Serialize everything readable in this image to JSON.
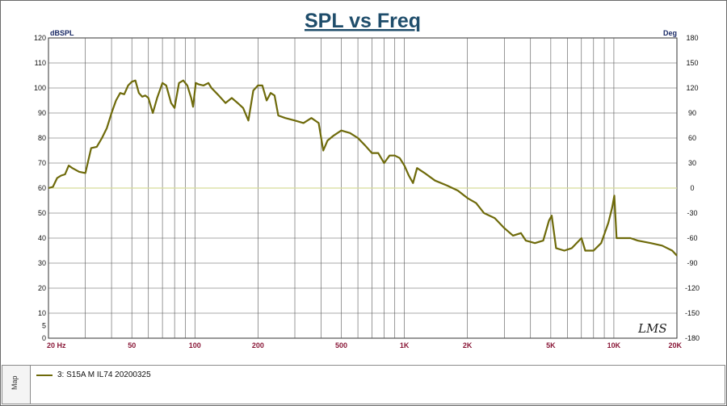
{
  "chart_data": {
    "type": "line",
    "title": "SPL vs Freq",
    "ylabel": "dBSPL",
    "y2label": "Deg",
    "xscale": "log",
    "xlim": [
      20,
      20000
    ],
    "ylim": [
      0,
      120
    ],
    "y2lim": [
      -180,
      180
    ],
    "grid": true,
    "x_ticks": [
      {
        "value": 20,
        "label": "20  Hz"
      },
      {
        "value": 50,
        "label": "50"
      },
      {
        "value": 100,
        "label": "100"
      },
      {
        "value": 200,
        "label": "200"
      },
      {
        "value": 500,
        "label": "500"
      },
      {
        "value": 1000,
        "label": "1K"
      },
      {
        "value": 2000,
        "label": "2K"
      },
      {
        "value": 5000,
        "label": "5K"
      },
      {
        "value": 10000,
        "label": "10K"
      },
      {
        "value": 20000,
        "label": "20K"
      }
    ],
    "y_ticks": [
      "0",
      "5",
      "10",
      "20",
      "30",
      "40",
      "50",
      "60",
      "70",
      "80",
      "90",
      "100",
      "110",
      "120"
    ],
    "y2_ticks": [
      "-180",
      "-150",
      "-120",
      "-90",
      "-60",
      "-30",
      "0",
      "30",
      "60",
      "90",
      "120",
      "150",
      "180"
    ],
    "phase_zero_line_color": "#d8dc9a",
    "series": [
      {
        "name": "3: S15A  M   IL74   20200325",
        "color": "#6e6a0a",
        "points": [
          [
            20,
            60
          ],
          [
            21,
            60.5
          ],
          [
            22,
            64
          ],
          [
            23,
            65
          ],
          [
            24,
            65.5
          ],
          [
            25,
            69
          ],
          [
            26,
            68
          ],
          [
            28,
            66.5
          ],
          [
            30,
            66
          ],
          [
            32,
            76
          ],
          [
            34,
            76.5
          ],
          [
            36,
            80
          ],
          [
            38,
            84
          ],
          [
            40,
            90
          ],
          [
            42,
            95
          ],
          [
            44,
            98
          ],
          [
            46,
            97.5
          ],
          [
            48,
            101
          ],
          [
            50,
            102.5
          ],
          [
            52,
            103
          ],
          [
            54,
            98
          ],
          [
            56,
            96.5
          ],
          [
            58,
            97
          ],
          [
            60,
            96
          ],
          [
            63,
            90
          ],
          [
            66,
            96
          ],
          [
            70,
            102
          ],
          [
            73,
            101
          ],
          [
            77,
            94
          ],
          [
            80,
            92
          ],
          [
            84,
            102
          ],
          [
            88,
            103
          ],
          [
            92,
            101
          ],
          [
            96,
            96
          ],
          [
            98,
            92.5
          ],
          [
            101,
            102
          ],
          [
            104,
            101.5
          ],
          [
            110,
            101
          ],
          [
            116,
            102
          ],
          [
            120,
            100
          ],
          [
            130,
            97
          ],
          [
            140,
            94
          ],
          [
            150,
            96
          ],
          [
            160,
            94
          ],
          [
            170,
            92
          ],
          [
            180,
            87
          ],
          [
            190,
            99
          ],
          [
            200,
            101
          ],
          [
            210,
            101
          ],
          [
            220,
            95
          ],
          [
            230,
            98
          ],
          [
            240,
            97
          ],
          [
            250,
            89
          ],
          [
            270,
            88
          ],
          [
            300,
            87
          ],
          [
            330,
            86
          ],
          [
            360,
            88
          ],
          [
            390,
            86
          ],
          [
            410,
            75
          ],
          [
            430,
            79
          ],
          [
            460,
            81
          ],
          [
            500,
            83
          ],
          [
            550,
            82
          ],
          [
            600,
            80
          ],
          [
            650,
            77
          ],
          [
            700,
            74
          ],
          [
            750,
            74
          ],
          [
            800,
            70
          ],
          [
            850,
            73
          ],
          [
            900,
            73
          ],
          [
            950,
            72
          ],
          [
            1000,
            69
          ],
          [
            1050,
            65
          ],
          [
            1100,
            62
          ],
          [
            1150,
            68
          ],
          [
            1250,
            66
          ],
          [
            1400,
            63
          ],
          [
            1600,
            61
          ],
          [
            1800,
            59
          ],
          [
            2000,
            56
          ],
          [
            2200,
            54
          ],
          [
            2400,
            50
          ],
          [
            2700,
            48
          ],
          [
            3000,
            44
          ],
          [
            3300,
            41
          ],
          [
            3600,
            42
          ],
          [
            3800,
            39
          ],
          [
            4200,
            38
          ],
          [
            4600,
            39
          ],
          [
            4900,
            47
          ],
          [
            5050,
            49
          ],
          [
            5300,
            36
          ],
          [
            5800,
            35
          ],
          [
            6300,
            36
          ],
          [
            7000,
            40
          ],
          [
            7300,
            35
          ],
          [
            8000,
            35
          ],
          [
            8700,
            38
          ],
          [
            9400,
            46
          ],
          [
            9800,
            52
          ],
          [
            10050,
            57
          ],
          [
            10300,
            40
          ],
          [
            12000,
            40
          ],
          [
            13000,
            39
          ],
          [
            15000,
            38
          ],
          [
            17000,
            37
          ],
          [
            19000,
            35
          ],
          [
            20000,
            33
          ]
        ]
      }
    ],
    "annotation": "LMS",
    "legend_position": "bottom-left",
    "legend_tab": "Map"
  }
}
